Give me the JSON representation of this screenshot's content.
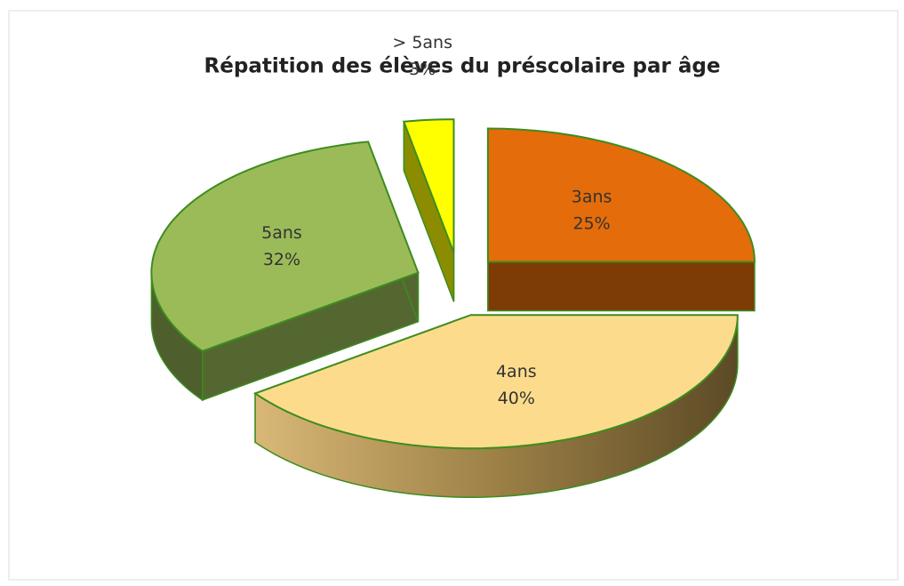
{
  "chart_data": {
    "type": "pie",
    "title": "Répatition des élèves du préscolaire par âge",
    "categories": [
      "3ans",
      "4ans",
      "5ans",
      "> 5ans"
    ],
    "values": [
      25,
      40,
      32,
      3
    ],
    "value_labels": [
      "25%",
      "40%",
      "32%",
      "3%"
    ],
    "colors": [
      "#e46c0a",
      "#fcdc8c",
      "#9bbb59",
      "#ffff00"
    ]
  }
}
